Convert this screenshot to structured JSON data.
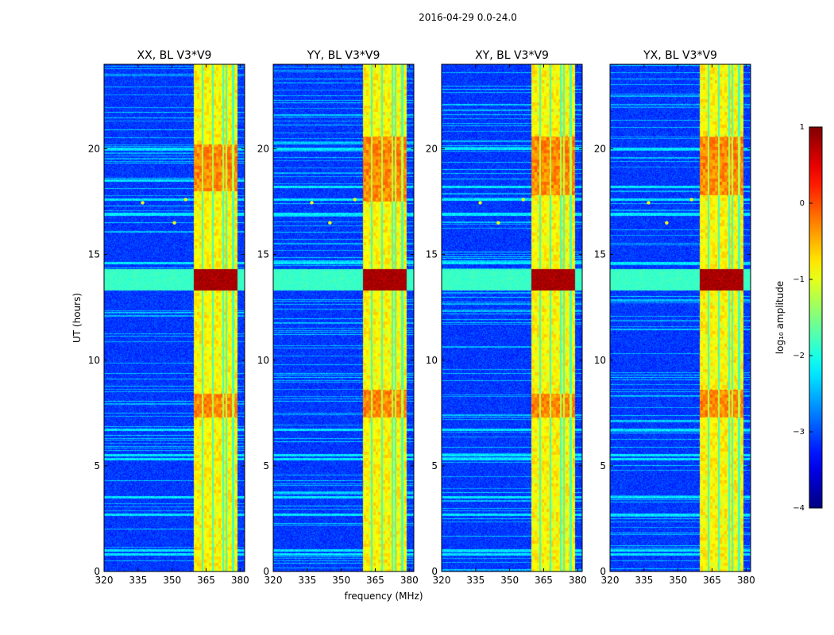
{
  "figure_title": "2016-04-29 0.0-24.0",
  "chart_data": [
    {
      "type": "heatmap",
      "title": "XX, BL V3*V9",
      "xlabel": "",
      "ylabel": "UT (hours)",
      "xlim": [
        320,
        382
      ],
      "ylim": [
        0,
        24
      ],
      "xticks": [
        320,
        335,
        350,
        365,
        380
      ],
      "yticks": [
        0,
        5,
        10,
        15,
        20
      ],
      "features": {
        "band_mhz": [
          359.5,
          378.8
        ],
        "band_lines_mhz": [
          363.5,
          368,
          372.5,
          374,
          377
        ],
        "strong_band_ut": [
          13.3,
          14.3
        ],
        "bright_rows_ut": [
          0.8,
          1.0,
          2.7,
          3.5,
          5.3,
          5.5,
          6.7,
          13.7,
          14.6,
          16.9,
          17.6,
          18.5,
          20.0
        ],
        "enhanced_band_ut": [
          [
            7.3,
            8.4
          ],
          [
            18,
            20.2
          ]
        ],
        "spot_points": [
          [
            337,
            17.45
          ],
          [
            351,
            16.5
          ],
          [
            356,
            17.6
          ]
        ]
      }
    },
    {
      "type": "heatmap",
      "title": "YY, BL V3*V9",
      "xlabel": "frequency (MHz)",
      "ylabel": "",
      "xlim": [
        320,
        382
      ],
      "ylim": [
        0,
        24
      ],
      "xticks": [
        320,
        335,
        350,
        365,
        380
      ],
      "yticks": [
        0,
        5,
        10,
        15,
        20
      ],
      "features": {
        "band_mhz": [
          359.5,
          378.8
        ],
        "band_lines_mhz": [
          363.5,
          368,
          372.5,
          374,
          377
        ],
        "strong_band_ut": [
          13.3,
          14.3
        ],
        "bright_rows_ut": [
          0.8,
          1.0,
          2.7,
          3.5,
          5.3,
          5.5,
          6.7,
          13.7,
          14.6,
          16.9,
          17.6,
          18.2,
          20.0
        ],
        "enhanced_band_ut": [
          [
            7.3,
            8.6
          ],
          [
            17.5,
            20.6
          ]
        ],
        "spot_points": [
          [
            337,
            17.45
          ],
          [
            345,
            16.5
          ],
          [
            356,
            17.6
          ]
        ]
      }
    },
    {
      "type": "heatmap",
      "title": "XY, BL V3*V9",
      "xlabel": "",
      "ylabel": "",
      "xlim": [
        320,
        382
      ],
      "ylim": [
        0,
        24
      ],
      "xticks": [
        320,
        335,
        350,
        365,
        380
      ],
      "yticks": [
        0,
        5,
        10,
        15,
        20
      ],
      "features": {
        "band_mhz": [
          359.5,
          378.8
        ],
        "band_lines_mhz": [
          363.5,
          368,
          372.5,
          374,
          377
        ],
        "strong_band_ut": [
          13.3,
          14.3
        ],
        "bright_rows_ut": [
          0.8,
          1.0,
          2.7,
          3.5,
          5.3,
          5.5,
          6.7,
          13.7,
          14.6,
          16.9,
          17.6,
          18.2,
          20.0
        ],
        "enhanced_band_ut": [
          [
            7.3,
            8.4
          ],
          [
            17.8,
            20.6
          ]
        ],
        "spot_points": [
          [
            337,
            17.45
          ],
          [
            345,
            16.5
          ],
          [
            356,
            17.6
          ]
        ]
      }
    },
    {
      "type": "heatmap",
      "title": "YX, BL V3*V9",
      "xlabel": "",
      "ylabel": "",
      "xlim": [
        320,
        382
      ],
      "ylim": [
        0,
        24
      ],
      "xticks": [
        320,
        335,
        350,
        365,
        380
      ],
      "yticks": [
        0,
        5,
        10,
        15,
        20
      ],
      "features": {
        "band_mhz": [
          359.5,
          378.8
        ],
        "band_lines_mhz": [
          363.5,
          368,
          372.5,
          374,
          377
        ],
        "strong_band_ut": [
          13.3,
          14.3
        ],
        "bright_rows_ut": [
          0.8,
          1.0,
          2.7,
          3.5,
          5.3,
          5.5,
          6.7,
          13.7,
          14.6,
          16.9,
          17.6,
          18.2,
          20.0
        ],
        "enhanced_band_ut": [
          [
            7.3,
            8.6
          ],
          [
            17.8,
            20.6
          ]
        ],
        "spot_points": [
          [
            337,
            17.45
          ],
          [
            345,
            16.5
          ],
          [
            356,
            17.6
          ]
        ]
      }
    }
  ],
  "colorbar": {
    "label": "log₁₀ amplitude",
    "range": [
      -4,
      1
    ],
    "ticks": [
      1,
      0,
      -1,
      -2,
      -3,
      -4
    ],
    "tick_labels": [
      "1",
      "0",
      "−1",
      "−2",
      "−3",
      "−4"
    ],
    "colormap": "jet",
    "colors": [
      "#00007f",
      "#0000ff",
      "#007fff",
      "#00ffff",
      "#7fff7f",
      "#ffff00",
      "#ff7f00",
      "#ff0000",
      "#7f0000"
    ]
  }
}
